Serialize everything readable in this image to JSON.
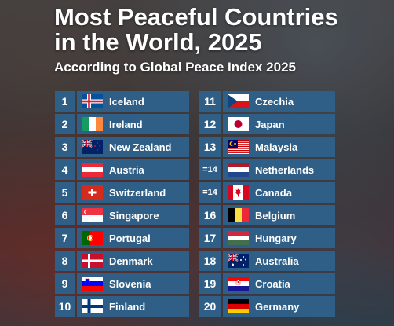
{
  "title_line1": "Most Peaceful Countries",
  "title_line2": "in the World, 2025",
  "subtitle": "According to Global Peace Index 2025",
  "left": [
    {
      "rank": "1",
      "country": "Iceland",
      "flag": "iceland-flag-icon"
    },
    {
      "rank": "2",
      "country": "Ireland",
      "flag": "ireland-flag-icon"
    },
    {
      "rank": "3",
      "country": "New Zealand",
      "flag": "new-zealand-flag-icon"
    },
    {
      "rank": "4",
      "country": "Austria",
      "flag": "austria-flag-icon"
    },
    {
      "rank": "5",
      "country": "Switzerland",
      "flag": "switzerland-flag-icon"
    },
    {
      "rank": "6",
      "country": "Singapore",
      "flag": "singapore-flag-icon"
    },
    {
      "rank": "7",
      "country": "Portugal",
      "flag": "portugal-flag-icon"
    },
    {
      "rank": "8",
      "country": "Denmark",
      "flag": "denmark-flag-icon"
    },
    {
      "rank": "9",
      "country": "Slovenia",
      "flag": "slovenia-flag-icon"
    },
    {
      "rank": "10",
      "country": "Finland",
      "flag": "finland-flag-icon"
    }
  ],
  "right": [
    {
      "rank": "11",
      "country": "Czechia",
      "flag": "czechia-flag-icon"
    },
    {
      "rank": "12",
      "country": "Japan",
      "flag": "japan-flag-icon"
    },
    {
      "rank": "13",
      "country": "Malaysia",
      "flag": "malaysia-flag-icon"
    },
    {
      "rank": "=14",
      "country": "Netherlands",
      "flag": "netherlands-flag-icon"
    },
    {
      "rank": "=14",
      "country": "Canada",
      "flag": "canada-flag-icon"
    },
    {
      "rank": "16",
      "country": "Belgium",
      "flag": "belgium-flag-icon"
    },
    {
      "rank": "17",
      "country": "Hungary",
      "flag": "hungary-flag-icon"
    },
    {
      "rank": "18",
      "country": "Australia",
      "flag": "australia-flag-icon"
    },
    {
      "rank": "19",
      "country": "Croatia",
      "flag": "croatia-flag-icon"
    },
    {
      "rank": "20",
      "country": "Germany",
      "flag": "germany-flag-icon"
    }
  ],
  "colors": {
    "cell_background": "#2f5f86",
    "text": "#ffffff"
  }
}
